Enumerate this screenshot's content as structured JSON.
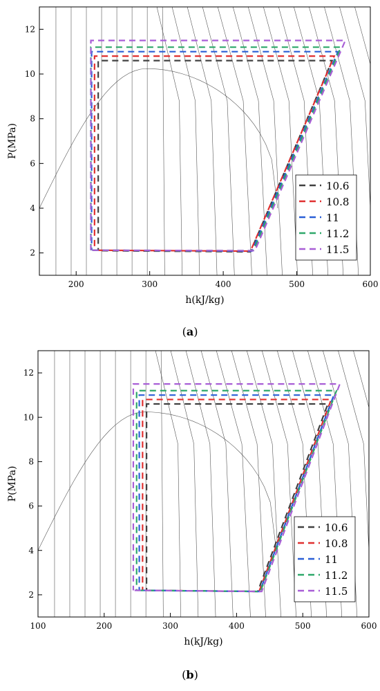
{
  "chart_data": [
    {
      "panel": "(a)",
      "panel_paren_open": "(",
      "panel_letter": "a",
      "panel_paren_close": ")",
      "type": "line",
      "xlabel": "h(kJ/kg)",
      "ylabel": "P(MPa)",
      "xlim": [
        150,
        600
      ],
      "ylim": [
        1,
        13
      ],
      "xticks": [
        200,
        300,
        400,
        500,
        600
      ],
      "xtick_labels": [
        "200",
        "300",
        "400",
        "500",
        "600"
      ],
      "yticks": [
        2,
        4,
        6,
        8,
        10,
        12
      ],
      "ytick_labels": [
        "2",
        "4",
        "6",
        "8",
        "10",
        "12"
      ],
      "legend_position": "bottom-right",
      "series": [
        {
          "name": "10.6",
          "color": "#404040",
          "x": [
            235,
            437,
            548,
            230,
            230
          ],
          "y": [
            2.1,
            2.05,
            10.6,
            10.6,
            2.1
          ]
        },
        {
          "name": "10.8",
          "color": "#e03030",
          "x": [
            230,
            437,
            551,
            225,
            225
          ],
          "y": [
            2.12,
            2.08,
            10.8,
            10.8,
            2.12
          ]
        },
        {
          "name": "11",
          "color": "#2a5fd6",
          "x": [
            222,
            439,
            556,
            221,
            221
          ],
          "y": [
            2.12,
            2.08,
            11.0,
            11.0,
            2.12
          ]
        },
        {
          "name": "11.2",
          "color": "#2ea86a",
          "x": [
            222,
            441,
            560,
            220,
            220
          ],
          "y": [
            2.12,
            2.1,
            11.2,
            11.2,
            2.12
          ]
        },
        {
          "name": "11.5",
          "color": "#a85ed6",
          "x": [
            222,
            443,
            566,
            220,
            220
          ],
          "y": [
            2.12,
            2.1,
            11.5,
            11.5,
            2.12
          ]
        }
      ]
    },
    {
      "panel": "(b)",
      "panel_paren_open": "(",
      "panel_letter": "b",
      "panel_paren_close": ")",
      "type": "line",
      "xlabel": "h(kJ/kg)",
      "ylabel": "P(MPa)",
      "xlim": [
        100,
        600
      ],
      "ylim": [
        1,
        13
      ],
      "xticks": [
        100,
        200,
        300,
        400,
        500,
        600
      ],
      "xtick_labels": [
        "100",
        "200",
        "300",
        "400",
        "500",
        "600"
      ],
      "yticks": [
        2,
        4,
        6,
        8,
        10,
        12
      ],
      "yticks_labels_note": "",
      "ytick_labels": [
        "2",
        "4",
        "6",
        "8",
        "10",
        "12"
      ],
      "legend_position": "bottom-right",
      "series": [
        {
          "name": "10.6",
          "color": "#404040",
          "x": [
            268,
            432,
            538,
            264,
            264
          ],
          "y": [
            2.2,
            2.15,
            10.6,
            10.6,
            2.2
          ]
        },
        {
          "name": "10.8",
          "color": "#e03030",
          "x": [
            262,
            434,
            543,
            258,
            258
          ],
          "y": [
            2.2,
            2.15,
            10.8,
            10.8,
            2.2
          ]
        },
        {
          "name": "11",
          "color": "#2a5fd6",
          "x": [
            255,
            435,
            547,
            253,
            253
          ],
          "y": [
            2.2,
            2.15,
            11.0,
            11.0,
            2.2
          ]
        },
        {
          "name": "11.2",
          "color": "#2ea86a",
          "x": [
            250,
            436,
            551,
            249,
            249
          ],
          "y": [
            2.2,
            2.15,
            11.2,
            11.2,
            2.2
          ]
        },
        {
          "name": "11.5",
          "color": "#a85ed6",
          "x": [
            246,
            438,
            556,
            244,
            244
          ],
          "y": [
            2.2,
            2.15,
            11.5,
            11.5,
            2.2
          ]
        }
      ]
    }
  ]
}
